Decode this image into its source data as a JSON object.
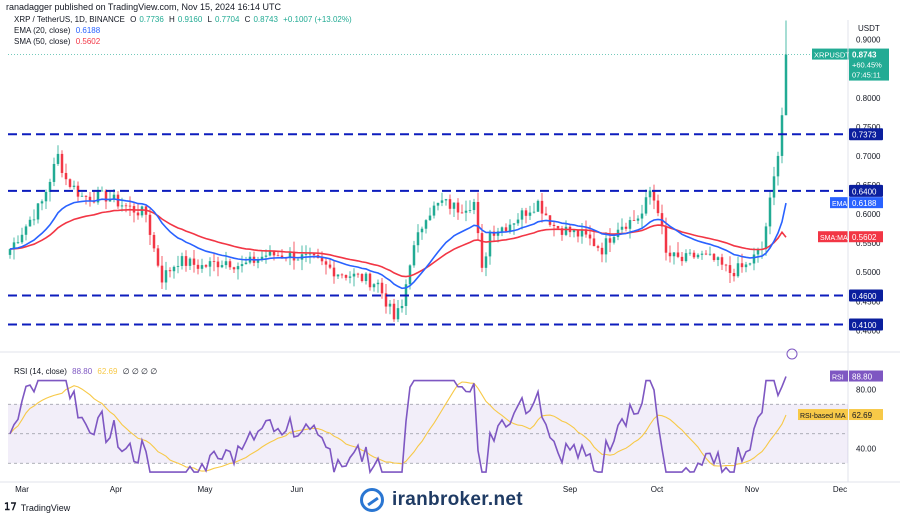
{
  "credit": "ranadagger published on TradingView.com, Nov 15, 2024 16:14 UTC",
  "legend": {
    "symbol": "XRP / TetherUS, 1D, BINANCE",
    "ohlc": [
      {
        "label": "O",
        "value": "0.7736"
      },
      {
        "label": "H",
        "value": "0.9160"
      },
      {
        "label": "L",
        "value": "0.7704"
      },
      {
        "label": "C",
        "value": "0.8743"
      }
    ],
    "change": "+0.1007 (+13.02%)",
    "ema_label": "EMA (20, close)",
    "ema_value": "0.6188",
    "sma_label": "SMA (50, close)",
    "sma_value": "0.5602"
  },
  "rsi_legend": {
    "label": "RSI (14, close)",
    "rsi_value": "88.80",
    "ma_value": "62.69",
    "extra": "∅ ∅ ∅ ∅"
  },
  "branding": {
    "tradingview": "TradingView",
    "watermark": "iranbroker.net"
  },
  "colors": {
    "up": "#22ab94",
    "down": "#f23645",
    "ema": "#2962ff",
    "sma": "#f23645",
    "rsi": "#7e57c2",
    "rsi_ma": "#f7c948",
    "level_line": "#0d1dbd",
    "level_badge": "#0b1f9e"
  },
  "chart_data": {
    "type": "candlestick",
    "currency": "USDT",
    "ylim": [
      0.38,
      0.92
    ],
    "y_ticks": [
      "0.9000",
      "0.8000",
      "0.7500",
      "0.7000",
      "0.6500",
      "0.6000",
      "0.5500",
      "0.5000",
      "0.4500",
      "0.4000"
    ],
    "x_ticks": [
      "Mar",
      "Apr",
      "May",
      "Jun",
      "Sep",
      "Oct",
      "Nov",
      "Dec"
    ],
    "horizontal_levels": [
      0.7373,
      0.64,
      0.46,
      0.41
    ],
    "horizontal_level_labels": [
      "0.7373",
      "0.6400",
      "0.4600",
      "0.4100"
    ],
    "price_path": [
      [
        0,
        0.54
      ],
      [
        4,
        0.58
      ],
      [
        8,
        0.62
      ],
      [
        12,
        0.7
      ],
      [
        14,
        0.66
      ],
      [
        18,
        0.63
      ],
      [
        24,
        0.63
      ],
      [
        30,
        0.61
      ],
      [
        34,
        0.6
      ],
      [
        36,
        0.54
      ],
      [
        38,
        0.49
      ],
      [
        42,
        0.52
      ],
      [
        48,
        0.51
      ],
      [
        54,
        0.52
      ],
      [
        58,
        0.51
      ],
      [
        64,
        0.53
      ],
      [
        70,
        0.53
      ],
      [
        76,
        0.52
      ],
      [
        82,
        0.5
      ],
      [
        88,
        0.49
      ],
      [
        92,
        0.48
      ],
      [
        96,
        0.42
      ],
      [
        98,
        0.44
      ],
      [
        100,
        0.52
      ],
      [
        104,
        0.6
      ],
      [
        108,
        0.62
      ],
      [
        112,
        0.61
      ],
      [
        116,
        0.62
      ],
      [
        118,
        0.5
      ],
      [
        120,
        0.57
      ],
      [
        124,
        0.58
      ],
      [
        128,
        0.6
      ],
      [
        132,
        0.62
      ],
      [
        136,
        0.58
      ],
      [
        140,
        0.57
      ],
      [
        144,
        0.56
      ],
      [
        148,
        0.54
      ],
      [
        152,
        0.58
      ],
      [
        156,
        0.59
      ],
      [
        158,
        0.6
      ],
      [
        160,
        0.64
      ],
      [
        162,
        0.61
      ],
      [
        164,
        0.53
      ],
      [
        168,
        0.52
      ],
      [
        172,
        0.53
      ],
      [
        176,
        0.52
      ],
      [
        180,
        0.5
      ],
      [
        184,
        0.51
      ],
      [
        188,
        0.54
      ],
      [
        190,
        0.62
      ],
      [
        192,
        0.7
      ],
      [
        193,
        0.77
      ],
      [
        194,
        0.8743
      ]
    ],
    "candle_count": 195,
    "last_price": 0.8743,
    "last_price_label": "0.8743",
    "last_change_label": "+60.45%",
    "countdown_label": "07:45:11",
    "symbol_badge": "XRPUSDT",
    "ema_label": "EMA",
    "ema_last": 0.6188,
    "ema_last_label": "0.6188",
    "sma_label": "SMA:MA",
    "sma_last": 0.5602,
    "sma_last_label": "0.5602",
    "rsi": {
      "ylim": [
        20,
        100
      ],
      "y_ticks": [
        "80.00",
        "40.00"
      ],
      "bands": [
        70,
        30
      ],
      "last": 88.8,
      "last_label": "88.80",
      "ma_last": 62.69,
      "ma_last_label": "62.69",
      "badge_rsi": "RSI",
      "badge_ma": "RSI-based MA"
    }
  }
}
